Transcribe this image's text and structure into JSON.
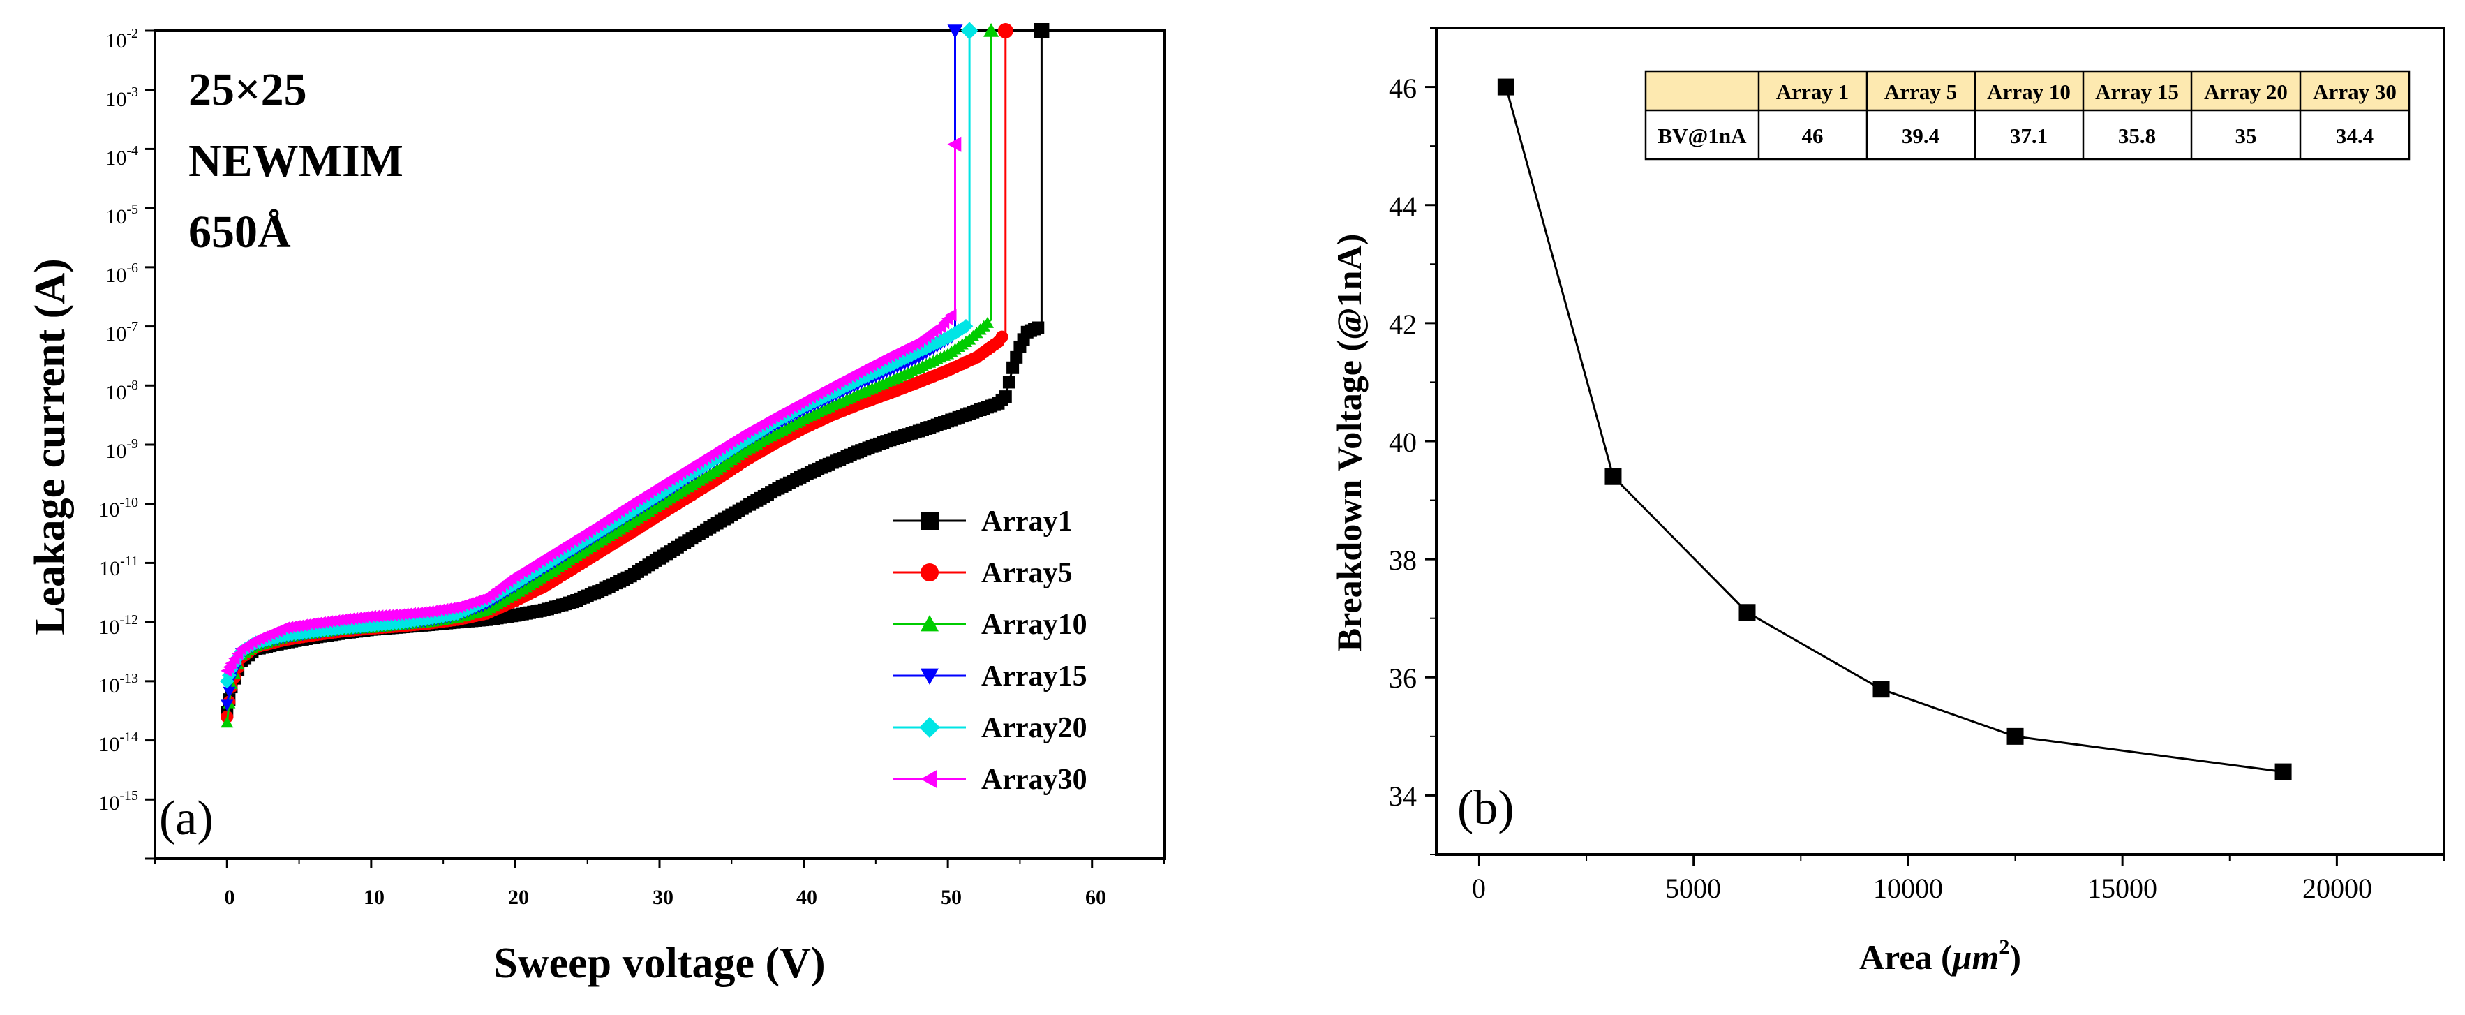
{
  "chart_data": [
    {
      "panel": "(a)",
      "type": "line",
      "xlabel": "Sweep voltage (V)",
      "ylabel": "Leakage current (A)",
      "xlim": [
        -5,
        65
      ],
      "xticks": [
        0,
        10,
        20,
        30,
        40,
        50,
        60
      ],
      "yscale": "log",
      "ylim": [
        1e-16,
        0.01
      ],
      "yticks": [
        {
          "base": "10",
          "exp": "-15",
          "value": 1e-15
        },
        {
          "base": "10",
          "exp": "-14",
          "value": 1e-14
        },
        {
          "base": "10",
          "exp": "-13",
          "value": 1e-13
        },
        {
          "base": "10",
          "exp": "-12",
          "value": 1e-12
        },
        {
          "base": "10",
          "exp": "-11",
          "value": 1e-11
        },
        {
          "base": "10",
          "exp": "-10",
          "value": 1e-10
        },
        {
          "base": "10",
          "exp": "-9",
          "value": 1e-09
        },
        {
          "base": "10",
          "exp": "-8",
          "value": 1e-08
        },
        {
          "base": "10",
          "exp": "-7",
          "value": 1e-07
        },
        {
          "base": "10",
          "exp": "-6",
          "value": 1e-06
        },
        {
          "base": "10",
          "exp": "-5",
          "value": 1e-05
        },
        {
          "base": "10",
          "exp": "-4",
          "value": 0.0001
        },
        {
          "base": "10",
          "exp": "-3",
          "value": 0.001
        },
        {
          "base": "10",
          "exp": "-2",
          "value": 0.01
        }
      ],
      "annotations": [
        "25×25",
        "NEWMIM",
        "650Å"
      ],
      "legend_position": "bottom-right",
      "series": [
        {
          "name": "Array1",
          "color": "#000000",
          "marker": "square",
          "x": [
            0,
            0.3,
            1,
            2,
            4,
            6,
            8,
            10,
            12,
            14,
            16,
            18,
            20,
            22,
            24,
            26,
            28,
            30,
            32,
            34,
            36,
            38,
            40,
            42,
            44,
            46,
            48,
            50,
            52,
            53.5,
            54,
            54.5,
            55,
            55.5,
            56,
            56.5,
            56.5
          ],
          "y": [
            3e-14,
            8e-14,
            2.2e-13,
            3.5e-13,
            4.5e-13,
            5.5e-13,
            6.5e-13,
            7.5e-13,
            8.2e-13,
            9e-13,
            1e-12,
            1.1e-12,
            1.3e-12,
            1.6e-12,
            2.2e-12,
            3.5e-12,
            6e-12,
            1.2e-11,
            2.4e-11,
            4.7e-11,
            9e-11,
            1.7e-10,
            3e-10,
            5e-10,
            8e-10,
            1.2e-09,
            1.7e-09,
            2.5e-09,
            3.7e-09,
            5e-09,
            6.5e-09,
            2e-08,
            4.5e-08,
            8e-08,
            9e-08,
            1e-07,
            0.01
          ]
        },
        {
          "name": "Array5",
          "color": "#ff0000",
          "marker": "circle",
          "x": [
            0,
            0.3,
            1,
            2,
            4,
            6,
            8,
            10,
            12,
            14,
            16,
            18,
            20,
            22,
            24,
            26,
            28,
            30,
            32,
            34,
            36,
            38,
            40,
            42,
            44,
            46,
            48,
            50,
            52,
            53.5,
            54,
            54
          ],
          "y": [
            2.5e-14,
            8e-14,
            2.5e-13,
            3.8e-13,
            5e-13,
            6e-13,
            7e-13,
            7.8e-13,
            8.5e-13,
            9.5e-13,
            1.1e-12,
            1.4e-12,
            2.3e-12,
            4e-12,
            8e-12,
            1.6e-11,
            3.2e-11,
            6.5e-11,
            1.3e-10,
            2.6e-10,
            5.5e-10,
            1.05e-09,
            1.9e-09,
            3.2e-09,
            5e-09,
            7.5e-09,
            1.15e-08,
            1.8e-08,
            3e-08,
            5.5e-08,
            8e-08,
            0.01
          ]
        },
        {
          "name": "Array10",
          "color": "#00cc00",
          "marker": "triangle-up",
          "x": [
            0,
            0.3,
            1,
            2,
            4,
            6,
            8,
            10,
            12,
            14,
            16,
            18,
            20,
            22,
            24,
            26,
            28,
            30,
            32,
            34,
            36,
            38,
            40,
            42,
            44,
            46,
            48,
            50,
            51.5,
            52.5,
            53,
            53
          ],
          "y": [
            2e-14,
            9e-14,
            2.8e-13,
            4e-13,
            5.5e-13,
            6.5e-13,
            7.5e-13,
            8e-13,
            9e-13,
            1e-12,
            1.2e-12,
            1.6e-12,
            3e-12,
            6e-12,
            1.2e-11,
            2.4e-11,
            4.8e-11,
            9.5e-11,
            1.9e-10,
            3.8e-10,
            8e-10,
            1.5e-09,
            2.7e-09,
            4.6e-09,
            7.5e-09,
            1.2e-08,
            2e-08,
            3.4e-08,
            6e-08,
            1e-07,
            1.3e-07,
            0.01
          ]
        },
        {
          "name": "Array15",
          "color": "#0000ff",
          "marker": "triangle-down",
          "x": [
            0,
            0.3,
            1,
            2,
            4,
            6,
            8,
            10,
            12,
            14,
            16,
            18,
            20,
            22,
            24,
            26,
            28,
            30,
            32,
            34,
            36,
            38,
            40,
            42,
            44,
            46,
            48,
            49.5,
            50.5,
            50.5
          ],
          "y": [
            4e-14,
            1.1e-13,
            3e-13,
            4.2e-13,
            5.5e-13,
            6.5e-13,
            7.5e-13,
            8.2e-13,
            9.2e-13,
            1.05e-12,
            1.3e-12,
            2e-12,
            4e-12,
            8e-12,
            1.6e-11,
            3.2e-11,
            6.5e-11,
            1.3e-10,
            2.7e-10,
            5.5e-10,
            1.1e-09,
            2.1e-09,
            3.8e-09,
            6.5e-09,
            1.1e-08,
            1.8e-08,
            3e-08,
            5e-08,
            7e-08,
            0.01
          ]
        },
        {
          "name": "Array20",
          "color": "#00e5e5",
          "marker": "diamond",
          "x": [
            0,
            0.3,
            1,
            2,
            4,
            6,
            8,
            10,
            12,
            14,
            16,
            18,
            20,
            22,
            24,
            26,
            28,
            30,
            32,
            34,
            36,
            38,
            40,
            42,
            44,
            46,
            48,
            50,
            51.5,
            51.5
          ],
          "y": [
            1e-13,
            1.6e-13,
            3.2e-13,
            4.5e-13,
            6e-13,
            7e-13,
            8e-13,
            8.8e-13,
            9.8e-13,
            1.15e-12,
            1.4e-12,
            2.3e-12,
            4.5e-12,
            9e-12,
            1.8e-11,
            3.6e-11,
            7.2e-11,
            1.45e-10,
            3e-10,
            6e-10,
            1.2e-09,
            2.4e-09,
            4.4e-09,
            7.5e-09,
            1.3e-08,
            2.2e-08,
            3.8e-08,
            6.5e-08,
            1.1e-07,
            0.01
          ]
        },
        {
          "name": "Array30",
          "color": "#ff00ff",
          "marker": "triangle-left",
          "x": [
            0,
            0.3,
            1,
            2,
            4,
            6,
            8,
            10,
            12,
            14,
            16,
            18,
            20,
            22,
            24,
            26,
            28,
            30,
            32,
            34,
            36,
            38,
            40,
            42,
            44,
            46,
            48,
            49.5,
            50.5,
            50.5
          ],
          "y": [
            1.5e-13,
            2e-13,
            3.5e-13,
            5e-13,
            8e-13,
            9.5e-13,
            1.1e-12,
            1.25e-12,
            1.35e-12,
            1.5e-12,
            1.8e-12,
            2.6e-12,
            6e-12,
            1.2e-11,
            2.4e-11,
            4.8e-11,
            1e-10,
            2e-10,
            4e-10,
            8e-10,
            1.6e-09,
            3e-09,
            5.5e-09,
            1e-08,
            1.8e-08,
            3.2e-08,
            5.5e-08,
            1e-07,
            1.8e-07,
            0.00012
          ]
        }
      ]
    },
    {
      "panel": "(b)",
      "type": "line",
      "xlabel_main": "Area (",
      "xlabel_unit": "μm",
      "xlabel_sup": "2",
      "xlabel_close": ")",
      "ylabel": "Breakdown Voltage (@1nA)",
      "xlim": [
        -1000,
        22500
      ],
      "xticks": [
        0,
        5000,
        10000,
        15000,
        20000
      ],
      "ylim": [
        33,
        47
      ],
      "yticks": [
        34,
        36,
        38,
        40,
        42,
        44,
        46
      ],
      "series": [
        {
          "name": "BV@1nA",
          "color": "#000000",
          "marker": "square",
          "x": [
            625,
            3125,
            6250,
            9375,
            12500,
            18750
          ],
          "y": [
            46,
            39.4,
            37.1,
            35.8,
            35,
            34.4
          ]
        }
      ],
      "table": {
        "corner": "",
        "headers": [
          "Array 1",
          "Array 5",
          "Array 10",
          "Array 15",
          "Array 20",
          "Array 30"
        ],
        "row_label": "BV@1nA",
        "values": [
          "46",
          "39.4",
          "37.1",
          "35.8",
          "35",
          "34.4"
        ],
        "header_fill": "#fde9b0"
      }
    }
  ]
}
